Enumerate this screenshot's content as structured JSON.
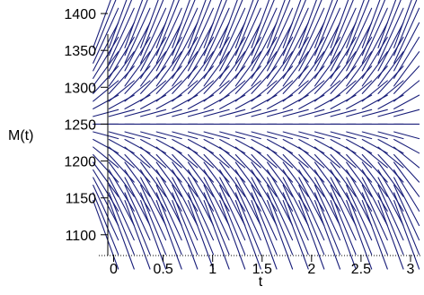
{
  "chart_data": {
    "type": "direction-field",
    "title": "",
    "xlabel": "t",
    "ylabel": "M(t)",
    "xlim": [
      -0.15,
      3.1
    ],
    "ylim": [
      1090,
      1405
    ],
    "x_ticks": [
      "0",
      "0.5",
      "1",
      "1.5",
      "2",
      "2.5",
      "3"
    ],
    "x_tick_values": [
      0,
      0.5,
      1,
      1.5,
      2,
      2.5,
      3
    ],
    "y_ticks": [
      "1100",
      "1150",
      "1200",
      "1250",
      "1300",
      "1350",
      "1400"
    ],
    "y_tick_values": [
      1100,
      1150,
      1200,
      1250,
      1300,
      1350,
      1400
    ],
    "equilibrium": 1250,
    "field_x_values": [
      -0.08,
      0.08,
      0.24,
      0.4,
      0.56,
      0.72,
      0.88,
      1.04,
      1.2,
      1.36,
      1.52,
      1.68,
      1.84,
      2.0,
      2.16,
      2.32,
      2.48,
      2.64,
      2.8,
      2.96
    ],
    "field_y_values": [
      1100,
      1115,
      1130,
      1145,
      1160,
      1175,
      1190,
      1205,
      1220,
      1235,
      1250,
      1265,
      1280,
      1295,
      1310,
      1325,
      1340,
      1355,
      1370,
      1385,
      1400
    ],
    "field_relative_slope": -0.0026,
    "grid": false,
    "colors": {
      "field": "#1a1f7a",
      "axis": "#000000",
      "tick": "#000000",
      "background": "#ffffff"
    }
  }
}
